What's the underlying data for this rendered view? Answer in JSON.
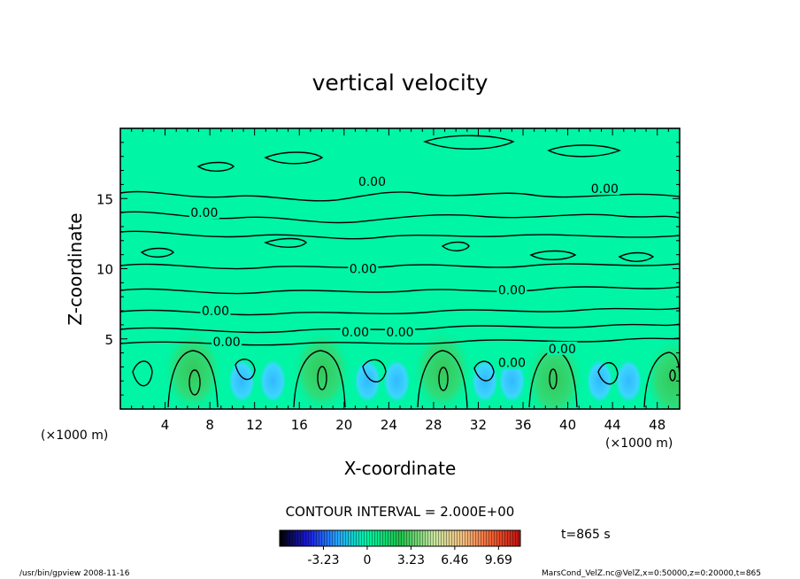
{
  "chart_data": {
    "type": "heatmap",
    "title": "vertical velocity",
    "xlabel": "X-coordinate",
    "ylabel": "Z-coordinate",
    "x_unit_left": "(×1000 m)",
    "x_unit_right": "(×1000 m)",
    "xlim": [
      0,
      50
    ],
    "ylim": [
      0,
      20
    ],
    "x_ticks": [
      4,
      8,
      12,
      16,
      20,
      24,
      28,
      32,
      36,
      40,
      44,
      48
    ],
    "y_ticks": [
      5,
      10,
      15
    ],
    "contour_interval_text": "CONTOUR INTERVAL = 2.000E+00",
    "contour_labels": [
      {
        "text": "0.00",
        "x": 22.5,
        "z": 16.2
      },
      {
        "text": "0.00",
        "x": 43.3,
        "z": 15.7
      },
      {
        "text": "0.00",
        "x": 7.5,
        "z": 14.0
      },
      {
        "text": "0.00",
        "x": 21.7,
        "z": 10.0
      },
      {
        "text": "0.00",
        "x": 35.0,
        "z": 8.5
      },
      {
        "text": "0.00",
        "x": 8.5,
        "z": 7.0
      },
      {
        "text": "0.00",
        "x": 21.0,
        "z": 5.5
      },
      {
        "text": "0.00",
        "x": 25.0,
        "z": 5.5
      },
      {
        "text": "0.00",
        "x": 9.5,
        "z": 4.8
      },
      {
        "text": "0.00",
        "x": 35.0,
        "z": 3.3
      },
      {
        "text": "0.00",
        "x": 39.5,
        "z": 4.3
      }
    ],
    "updraft_columns": [
      {
        "x": 6.5,
        "peak": 5.0
      },
      {
        "x": 18.0,
        "peak": 5.0
      },
      {
        "x": 28.8,
        "peak": 5.0
      },
      {
        "x": 38.8,
        "peak": 4.0
      },
      {
        "x": 49.5,
        "peak": 4.0
      }
    ],
    "colorbar": {
      "ticks": [
        "-3.23",
        "0",
        "3.23",
        "6.46",
        "9.69"
      ],
      "tick_values": [
        -3.23,
        0,
        3.23,
        6.46,
        9.69
      ],
      "range": [
        -6.46,
        11.3
      ]
    },
    "colors": {
      "background": "#00f5a5",
      "updraft": "#22d36a",
      "downdraft": "#39c8ff"
    }
  },
  "time_label": "t=865 s",
  "footer_left": "/usr/bin/gpview   2008-11-16",
  "footer_right": "MarsCond_VelZ.nc@VelZ,x=0:50000,z=0:20000,t=865"
}
